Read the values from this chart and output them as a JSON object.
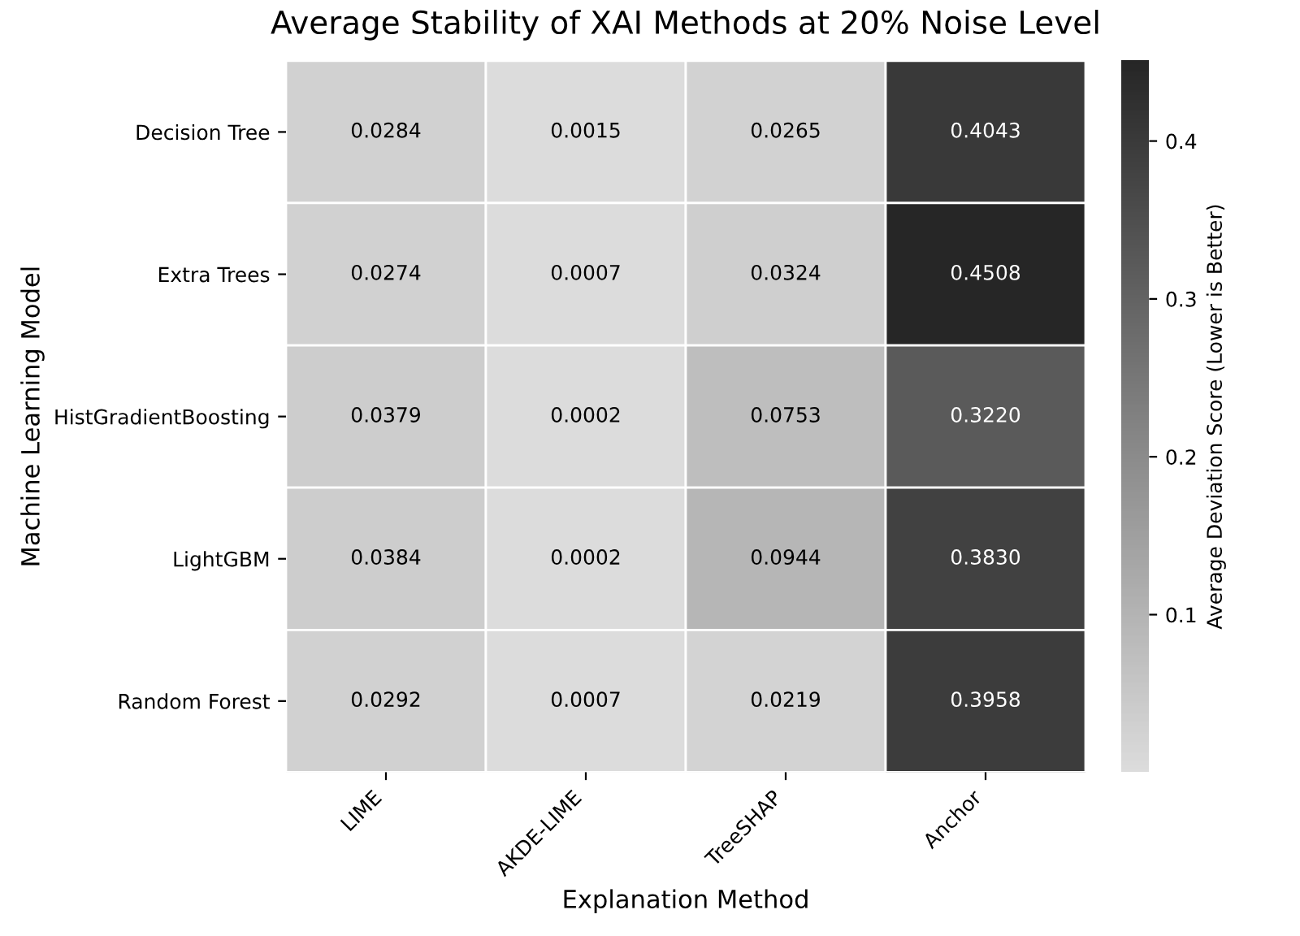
{
  "chart_data": {
    "type": "heatmap",
    "title": "Average Stability of XAI Methods at 20% Noise Level",
    "xlabel": "Explanation Method",
    "ylabel": "Machine Learning Model",
    "clabel": "Average Deviation Score (Lower is Better)",
    "categories": [
      "LIME",
      "AKDE-LIME",
      "TreeSHAP",
      "Anchor"
    ],
    "y_categories": [
      "Decision Tree",
      "Extra Trees",
      "HistGradientBoosting",
      "LightGBM",
      "Random Forest"
    ],
    "cells": [
      [
        0.0284,
        0.0015,
        0.0265,
        0.4043
      ],
      [
        0.0274,
        0.0007,
        0.0324,
        0.4508
      ],
      [
        0.0379,
        0.0002,
        0.0753,
        0.322
      ],
      [
        0.0384,
        0.0002,
        0.0944,
        0.383
      ],
      [
        0.0292,
        0.0007,
        0.0219,
        0.3958
      ]
    ],
    "cell_labels": [
      [
        "0.0284",
        "0.0015",
        "0.0265",
        "0.4043"
      ],
      [
        "0.0274",
        "0.0007",
        "0.0324",
        "0.4508"
      ],
      [
        "0.0379",
        "0.0002",
        "0.0753",
        "0.3220"
      ],
      [
        "0.0384",
        "0.0002",
        "0.0944",
        "0.3830"
      ],
      [
        "0.0292",
        "0.0007",
        "0.0219",
        "0.3958"
      ]
    ],
    "clim": [
      0.0002,
      0.4508
    ],
    "cticks": [
      0.1,
      0.2,
      0.3,
      0.4
    ]
  }
}
